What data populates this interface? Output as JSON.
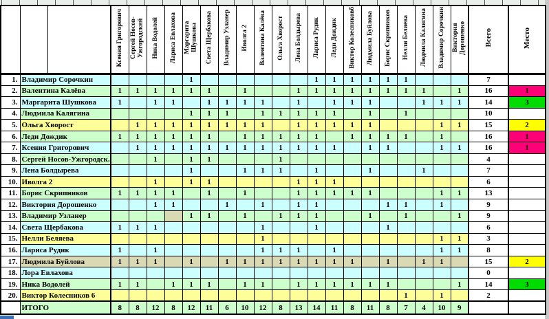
{
  "header": {
    "columns": [
      "Ксения Григорович",
      "Сергей Носов-Ужгородский",
      "Ника Водолей",
      "Лариса Евлахова",
      "Маргарита Шушкова",
      "Света Щербакова",
      "Владимир Узланер",
      "Иволга 2",
      "Валентина Калёва",
      "Ольга Хворост",
      "Лена Болдырева",
      "Лариса Рудик",
      "Леди Дождик",
      "Виктор Колесниковб",
      "Людмила Буйлова",
      "Борис Скрипников",
      "Нелли Беляева",
      "Людмила Калягина",
      "Владимир Сорочкин",
      "Виктория Дорошенко"
    ],
    "total_label": "Всего",
    "place_label": "Место"
  },
  "rows": [
    {
      "num": "1.",
      "name": "Владимир Сорочкин",
      "color": "cyan",
      "votes": "00001000000111111000",
      "total": "7",
      "place": ""
    },
    {
      "num": "2.",
      "name": "Валентина Калёва",
      "color": "green",
      "votes": "11111101001111111101",
      "total": "16",
      "place": "1"
    },
    {
      "num": "3.",
      "name": "Маргарита Шушкова",
      "color": "cyan",
      "votes": "10110111101011100111",
      "total": "14",
      "place": "3"
    },
    {
      "num": "4.",
      "name": "Людмила Калягина",
      "color": "green",
      "votes": "00001110111110101000",
      "total": "10",
      "place": ""
    },
    {
      "num": "5.",
      "name": "Ольга Хворост",
      "color": "yellow",
      "votes": "01111111101111100011",
      "total": "15",
      "place": "2"
    },
    {
      "num": "6.",
      "name": "Леди Дождик",
      "color": "green",
      "votes": "11111101111101111010",
      "total": "16",
      "place": "1"
    },
    {
      "num": "7.",
      "name": "Ксения Григорович",
      "color": "cyan",
      "votes": "01111111111110110011",
      "total": "16",
      "place": "1"
    },
    {
      "num": "8.",
      "name": "Сергей Носов-Ужгородск.",
      "color": "green",
      "votes": "00101100010000000000",
      "total": "4",
      "place": ""
    },
    {
      "num": "9.",
      "name": "Лена Болдырева",
      "color": "cyan",
      "votes": "00001001110100100100",
      "total": "7",
      "place": ""
    },
    {
      "num": "10.",
      "name": "Иволга 2",
      "color": "yellow",
      "votes": "00101100001110000000",
      "total": "6",
      "place": ""
    },
    {
      "num": "11.",
      "name": "Борис Скрипников",
      "color": "green",
      "votes": "11110101001111100011",
      "total": "13",
      "place": ""
    },
    {
      "num": "12.",
      "name": "Виктория Дорошенко",
      "color": "cyan",
      "votes": "00110010101100011010",
      "total": "9",
      "place": ""
    },
    {
      "num": "13.",
      "name": "Владимир Узланер",
      "color": "green",
      "votes": "00001101011100101001",
      "total": "9",
      "place": ""
    },
    {
      "num": "14.",
      "name": "Света Щербакова",
      "color": "cyan",
      "votes": "11100000100100010000",
      "total": "6",
      "place": ""
    },
    {
      "num": "15.",
      "name": "Нелли Беляева",
      "color": "yellow",
      "votes": "00000000100000000011",
      "total": "3",
      "place": ""
    },
    {
      "num": "16.",
      "name": "Лариса Рудик",
      "color": "cyan",
      "votes": "10100000111010000011",
      "total": "8",
      "place": ""
    },
    {
      "num": "17.",
      "name": "Людмила Буйлова",
      "color": "tan",
      "votes": "11101011111111010110",
      "total": "15",
      "place": "2"
    },
    {
      "num": "18.",
      "name": "Лора Евлахова",
      "color": "cyan",
      "votes": "00000000000000000000",
      "total": "0",
      "place": ""
    },
    {
      "num": "19.",
      "name": "Ника Водолей",
      "color": "green",
      "votes": "11011101101111110001",
      "total": "14",
      "place": "3"
    },
    {
      "num": "20.",
      "name": "Виктор Колесников 6",
      "color": "yellow",
      "votes": "00000000000000001010",
      "total": "2",
      "place": ""
    }
  ],
  "footer": {
    "label": "ИТОГО",
    "totals": [
      "8",
      "8",
      "12",
      "8",
      "12",
      "11",
      "6",
      "10",
      "12",
      "8",
      "13",
      "14",
      "11",
      "8",
      "11",
      "8",
      "7",
      "4",
      "10",
      "9"
    ],
    "color": "green"
  },
  "colors": {
    "cyan": "#CCFFFF",
    "green": "#CCFFCC",
    "yellow": "#FFFF99",
    "tan": "#D9D9B3",
    "white": "#FFFFFF"
  },
  "place_colors": {
    "1": "#FF0077",
    "2": "#FFFF00",
    "3": "#00DC00"
  },
  "special_cells": [
    {
      "row": 13,
      "col": 4,
      "color": "tan"
    }
  ]
}
